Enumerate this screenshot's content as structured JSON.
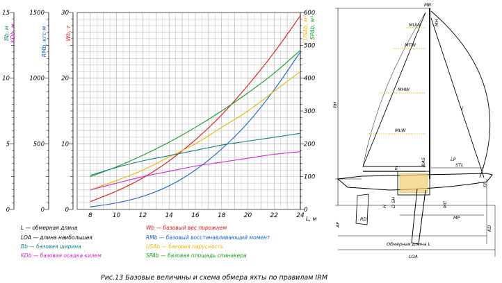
{
  "chart_data": {
    "type": "line",
    "x_axis": {
      "label": "L, м",
      "min": 7,
      "max": 24,
      "ticks": [
        8,
        10,
        12,
        14,
        16,
        18,
        20,
        22,
        24
      ]
    },
    "y_axes": [
      {
        "id": "bk",
        "label_top": "Bb, м",
        "label_bottom": "KDb, м",
        "min": 0,
        "max": 15,
        "ticks": [
          0,
          5,
          10,
          15
        ]
      },
      {
        "id": "rm",
        "label": "RMb, кгс·м",
        "min": 0,
        "max": 1500,
        "ticks": [
          0,
          500,
          1000,
          1500
        ]
      },
      {
        "id": "w",
        "label": "Wb, т",
        "min": 0,
        "max": 30,
        "ticks": [
          0,
          10,
          20,
          30
        ]
      },
      {
        "id": "s",
        "label_top": "USAb, м²",
        "label_bottom": "SPAb, м²",
        "min": 0,
        "max": 600,
        "ticks": [
          0,
          100,
          200,
          300,
          400,
          500,
          600
        ]
      }
    ],
    "series": [
      {
        "key": "Wb",
        "axis": "w",
        "color": "#e01010",
        "x": [
          8,
          10,
          12,
          14,
          16,
          18,
          20,
          22,
          24
        ],
        "y": [
          1.2,
          2.8,
          4.8,
          7.4,
          10.6,
          14.4,
          18.9,
          23.9,
          29.5
        ]
      },
      {
        "key": "RMb",
        "axis": "rm",
        "color": "#1060d0",
        "x": [
          8,
          10,
          12,
          14,
          16,
          18,
          20,
          22,
          24
        ],
        "y": [
          20,
          50,
          100,
          180,
          300,
          460,
          660,
          910,
          1200
        ]
      },
      {
        "key": "USAb",
        "axis": "s",
        "color": "#e8b800",
        "x": [
          8,
          10,
          12,
          14,
          16,
          18,
          20,
          22,
          24
        ],
        "y": [
          60,
          88,
          120,
          160,
          200,
          250,
          300,
          360,
          420
        ]
      },
      {
        "key": "SPAb",
        "axis": "s",
        "color": "#10a020",
        "x": [
          8,
          10,
          12,
          14,
          16,
          18,
          20,
          22,
          24
        ],
        "y": [
          100,
          130,
          165,
          205,
          250,
          300,
          355,
          415,
          485
        ]
      },
      {
        "key": "Bb",
        "axis": "bk",
        "color": "#108080",
        "x": [
          8,
          10,
          12,
          14,
          16,
          18,
          20,
          22,
          24
        ],
        "y": [
          2.6,
          3.2,
          3.7,
          4.1,
          4.5,
          4.9,
          5.2,
          5.5,
          5.8
        ]
      },
      {
        "key": "KDb",
        "axis": "bk",
        "color": "#d020d0",
        "x": [
          8,
          10,
          12,
          14,
          16,
          18,
          20,
          22,
          24
        ],
        "y": [
          1.5,
          2.0,
          2.5,
          2.9,
          3.3,
          3.6,
          3.9,
          4.2,
          4.4
        ]
      }
    ],
    "legend": [
      {
        "text": "L — обмерная длина",
        "color": "#000000"
      },
      {
        "text": "LOA — длина наибольшая",
        "color": "#000000"
      },
      {
        "text": "Bb — базовая ширина",
        "color": "#108080"
      },
      {
        "text": "KDb — базовая осадка килем",
        "color": "#d020d0"
      },
      {
        "text": "Wb — базовый вес порожнем",
        "color": "#e01010"
      },
      {
        "text": "RMb — базовый восстанавливающий момент",
        "color": "#1060d0"
      },
      {
        "text": "USAb — базовая парусность",
        "color": "#e8b800"
      },
      {
        "text": "SPAb — базовая площадь спинакера",
        "color": "#10a020"
      }
    ]
  },
  "schematic": {
    "labels": {
      "MB": "MB",
      "MH": "MH",
      "MUW": "MUW",
      "MTW": "MTW",
      "MHW": "MHW",
      "MLW": "MLW",
      "E": "E",
      "BAS": "BAS",
      "STL": "STL",
      "LP": "LP",
      "RH": "RH",
      "I": "I",
      "H": "H",
      "DSH": "D SH",
      "MC": "MC",
      "FF": "FF",
      "MP": "MP",
      "KD": "KD",
      "AF": "AF",
      "RD": "RD",
      "L_label": "Обмерная длина L",
      "LOA": "LOA"
    }
  },
  "caption": "Рис.13   Базовые величины и схема обмера яхты по правилам IRM"
}
